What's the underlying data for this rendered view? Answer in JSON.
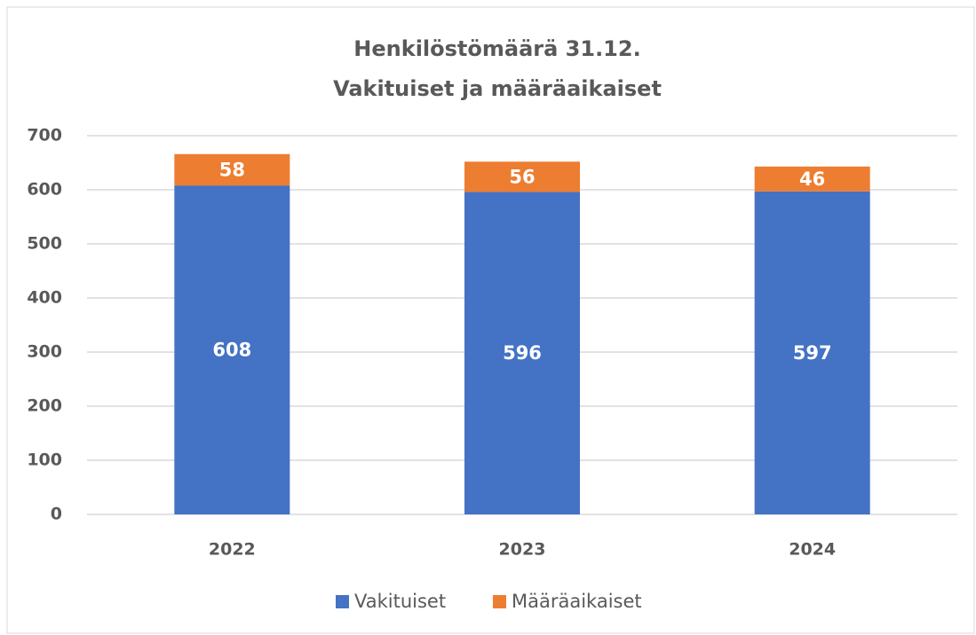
{
  "chart_data": {
    "type": "stacked_bar",
    "title": "Henkilöstömäärä 31.12.",
    "subtitle": "Vakituiset ja määräaikaiset",
    "categories": [
      "2022",
      "2023",
      "2024"
    ],
    "series": [
      {
        "name": "Vakituiset",
        "color": "#4472c4",
        "values": [
          608,
          596,
          597
        ]
      },
      {
        "name": "Määräaikaiset",
        "color": "#ed7d31",
        "values": [
          58,
          56,
          46
        ]
      }
    ],
    "ylim": [
      0,
      700
    ],
    "yticks": [
      0,
      100,
      200,
      300,
      400,
      500,
      600,
      700
    ],
    "grid": true,
    "legend": "bottom"
  }
}
